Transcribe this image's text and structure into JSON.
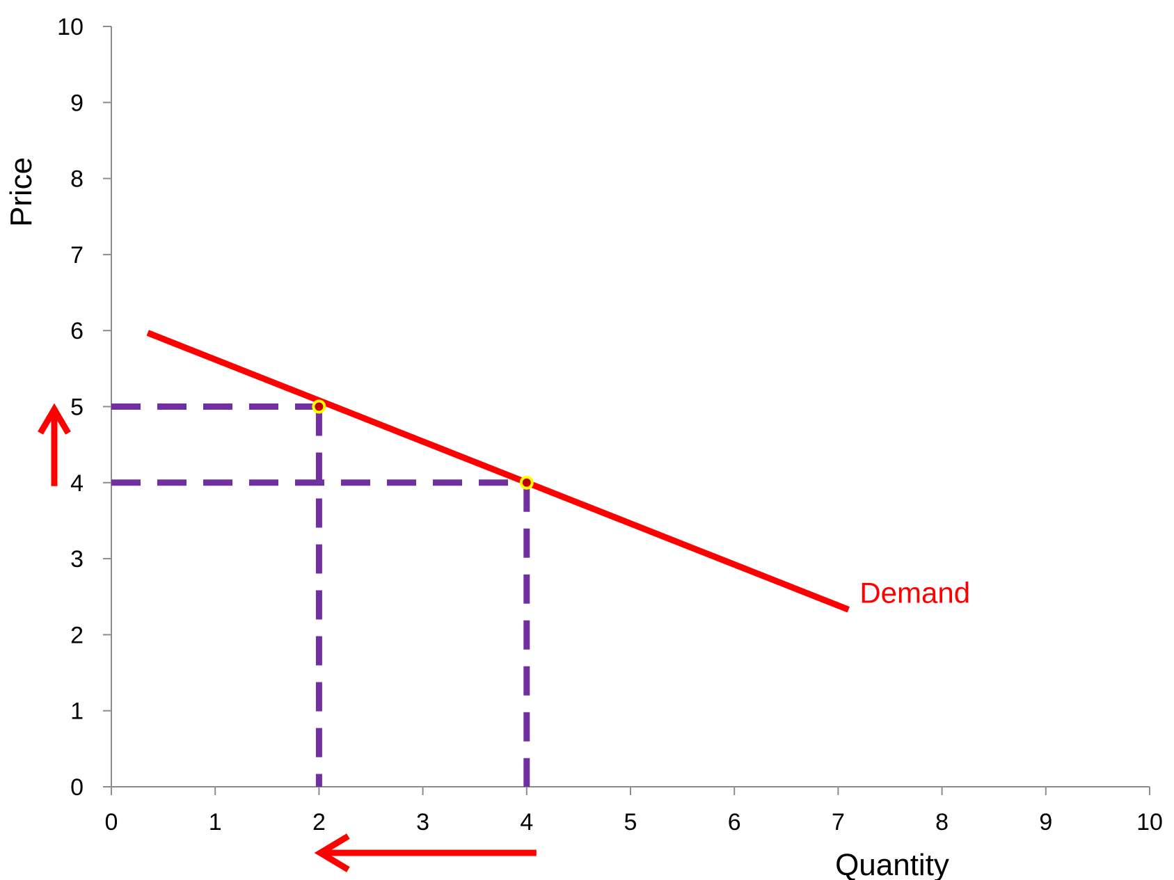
{
  "chart_data": {
    "type": "line",
    "title": "",
    "xlabel": "Quantity",
    "ylabel": "Price",
    "xlim": [
      0,
      10
    ],
    "ylim": [
      0,
      10
    ],
    "xticks": [
      "0",
      "1",
      "2",
      "3",
      "4",
      "5",
      "6",
      "7",
      "8",
      "9",
      "10"
    ],
    "yticks": [
      "0",
      "1",
      "2",
      "3",
      "4",
      "5",
      "6",
      "7",
      "8",
      "9",
      "10"
    ],
    "grid": false,
    "series": [
      {
        "name": "Demand",
        "x": [
          0.35,
          7.1
        ],
        "y": [
          5.97,
          2.33
        ],
        "color": "#ff0000"
      }
    ],
    "highlight_points": [
      {
        "x": 2,
        "y": 5
      },
      {
        "x": 4,
        "y": 4
      }
    ],
    "guide_lines": [
      {
        "from": [
          0,
          5
        ],
        "to": [
          2,
          5
        ]
      },
      {
        "from": [
          2,
          5
        ],
        "to": [
          2,
          0
        ]
      },
      {
        "from": [
          0,
          4
        ],
        "to": [
          4,
          4
        ]
      },
      {
        "from": [
          4,
          4
        ],
        "to": [
          4,
          0
        ]
      }
    ],
    "arrows": [
      {
        "direction": "up",
        "axis": "price",
        "from": 4,
        "to": 5
      },
      {
        "direction": "left",
        "axis": "quantity",
        "from": 4,
        "to": 2
      }
    ],
    "colors": {
      "demand": "#ff0000",
      "guides": "#7030a0",
      "point_ring": "#ffff00",
      "point_fill": "#c00000",
      "arrows": "#ff0000",
      "axis": "#8c8c8c"
    }
  }
}
